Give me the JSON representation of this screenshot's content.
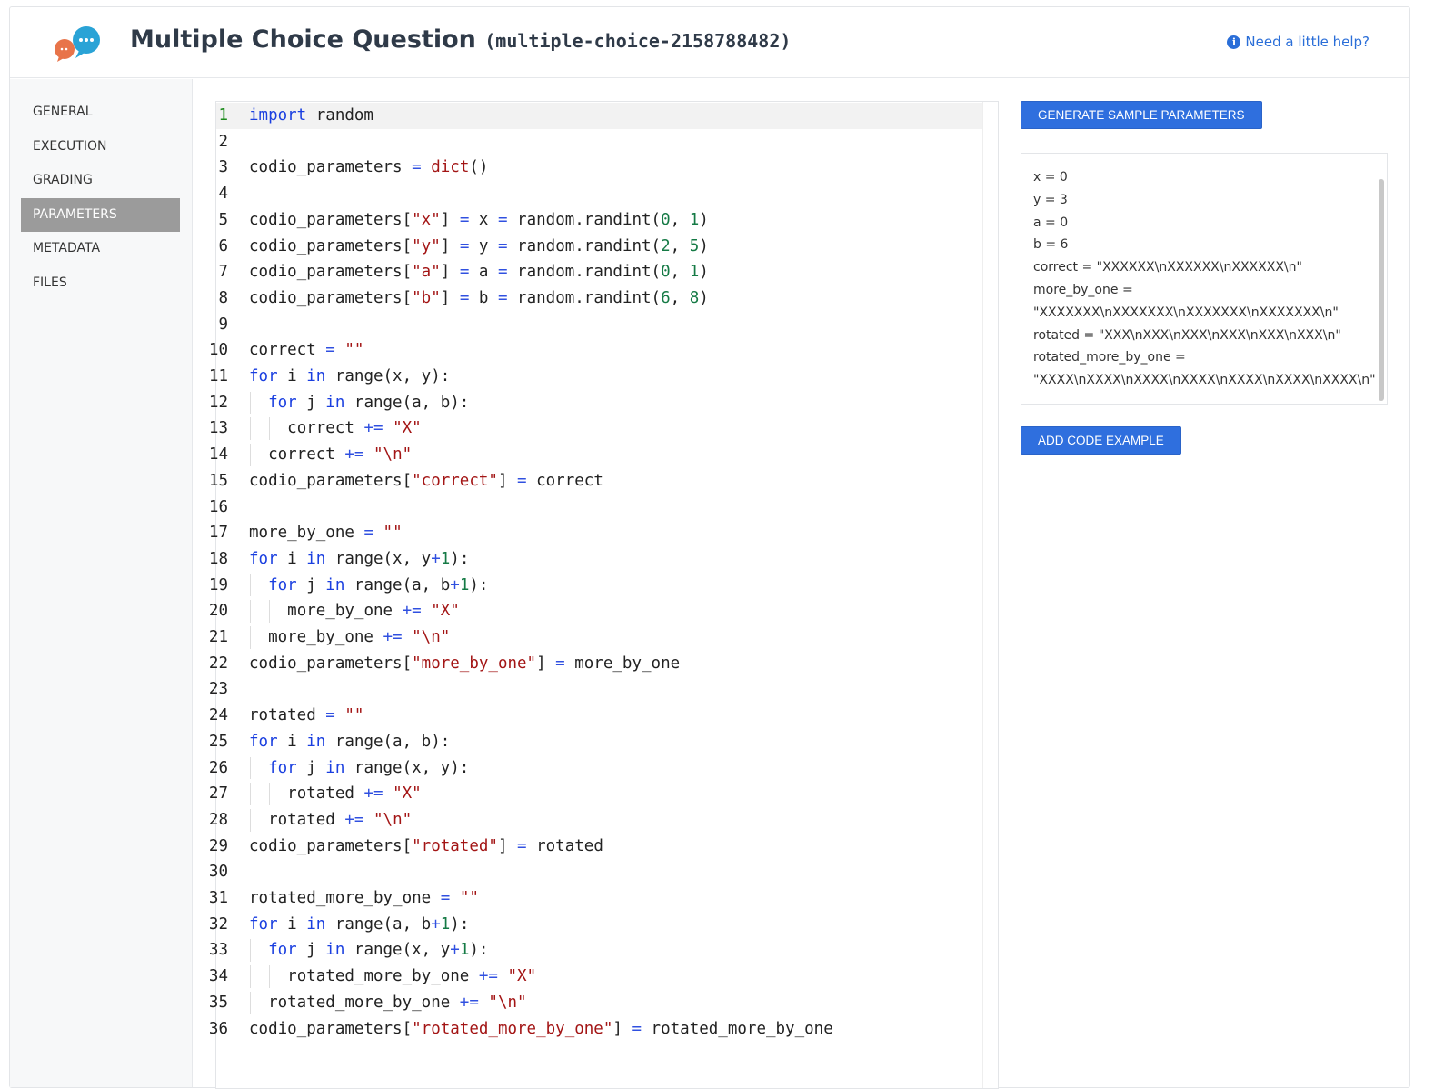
{
  "header": {
    "title": "Multiple Choice Question",
    "slug": "(multiple-choice-2158788482)",
    "help_label": "Need a little help?",
    "help_icon": "info-circle-icon",
    "logo_icon": "chat-bubbles-icon"
  },
  "sidebar": {
    "items": [
      {
        "label": "GENERAL"
      },
      {
        "label": "EXECUTION"
      },
      {
        "label": "GRADING"
      },
      {
        "label": "PARAMETERS",
        "active": true
      },
      {
        "label": "METADATA"
      },
      {
        "label": "FILES"
      }
    ]
  },
  "buttons": {
    "generate": "GENERATE SAMPLE PARAMETERS",
    "add_example": "ADD CODE EXAMPLE"
  },
  "colors": {
    "accent": "#2f6fde",
    "keyword": "#1a3fe0",
    "string": "#a31515",
    "number": "#157a45"
  },
  "params": [
    "x = 0",
    "y = 3",
    "a = 0",
    "b = 6",
    "correct = \"XXXXXX\\nXXXXXX\\nXXXXXX\\n\"",
    "more_by_one =",
    "\"XXXXXXX\\nXXXXXXX\\nXXXXXXX\\nXXXXXXX\\n\"",
    "rotated = \"XXX\\nXXX\\nXXX\\nXXX\\nXXX\\nXXX\\n\"",
    "rotated_more_by_one =",
    "\"XXXX\\nXXXX\\nXXXX\\nXXXX\\nXXXX\\nXXXX\\nXXXX\\n\""
  ],
  "code": [
    {
      "indent": 0,
      "t": [
        [
          "k",
          "import"
        ],
        [
          "p",
          " random"
        ]
      ]
    },
    {
      "indent": 0,
      "t": []
    },
    {
      "indent": 0,
      "t": [
        [
          "p",
          "codio_parameters "
        ],
        [
          "o",
          "="
        ],
        [
          "p",
          " "
        ],
        [
          "s",
          "dict"
        ],
        [
          "p",
          "()"
        ]
      ]
    },
    {
      "indent": 0,
      "t": []
    },
    {
      "indent": 0,
      "t": [
        [
          "p",
          "codio_parameters["
        ],
        [
          "s",
          "\"x\""
        ],
        [
          "p",
          "] "
        ],
        [
          "o",
          "="
        ],
        [
          "p",
          " x "
        ],
        [
          "o",
          "="
        ],
        [
          "p",
          " random.randint("
        ],
        [
          "n",
          "0"
        ],
        [
          "p",
          ", "
        ],
        [
          "n",
          "1"
        ],
        [
          "p",
          ")"
        ]
      ]
    },
    {
      "indent": 0,
      "t": [
        [
          "p",
          "codio_parameters["
        ],
        [
          "s",
          "\"y\""
        ],
        [
          "p",
          "] "
        ],
        [
          "o",
          "="
        ],
        [
          "p",
          " y "
        ],
        [
          "o",
          "="
        ],
        [
          "p",
          " random.randint("
        ],
        [
          "n",
          "2"
        ],
        [
          "p",
          ", "
        ],
        [
          "n",
          "5"
        ],
        [
          "p",
          ")"
        ]
      ]
    },
    {
      "indent": 0,
      "t": [
        [
          "p",
          "codio_parameters["
        ],
        [
          "s",
          "\"a\""
        ],
        [
          "p",
          "] "
        ],
        [
          "o",
          "="
        ],
        [
          "p",
          " a "
        ],
        [
          "o",
          "="
        ],
        [
          "p",
          " random.randint("
        ],
        [
          "n",
          "0"
        ],
        [
          "p",
          ", "
        ],
        [
          "n",
          "1"
        ],
        [
          "p",
          ")"
        ]
      ]
    },
    {
      "indent": 0,
      "t": [
        [
          "p",
          "codio_parameters["
        ],
        [
          "s",
          "\"b\""
        ],
        [
          "p",
          "] "
        ],
        [
          "o",
          "="
        ],
        [
          "p",
          " b "
        ],
        [
          "o",
          "="
        ],
        [
          "p",
          " random.randint("
        ],
        [
          "n",
          "6"
        ],
        [
          "p",
          ", "
        ],
        [
          "n",
          "8"
        ],
        [
          "p",
          ")"
        ]
      ]
    },
    {
      "indent": 0,
      "t": []
    },
    {
      "indent": 0,
      "t": [
        [
          "p",
          "correct "
        ],
        [
          "o",
          "="
        ],
        [
          "p",
          " "
        ],
        [
          "s",
          "\"\""
        ]
      ]
    },
    {
      "indent": 0,
      "t": [
        [
          "k",
          "for"
        ],
        [
          "p",
          " i "
        ],
        [
          "k",
          "in"
        ],
        [
          "p",
          " range(x, y):"
        ]
      ]
    },
    {
      "indent": 1,
      "t": [
        [
          "k",
          "for"
        ],
        [
          "p",
          " j "
        ],
        [
          "k",
          "in"
        ],
        [
          "p",
          " range(a, b):"
        ]
      ]
    },
    {
      "indent": 2,
      "t": [
        [
          "p",
          "correct "
        ],
        [
          "o",
          "+="
        ],
        [
          "p",
          " "
        ],
        [
          "s",
          "\"X\""
        ]
      ]
    },
    {
      "indent": 1,
      "t": [
        [
          "p",
          "correct "
        ],
        [
          "o",
          "+="
        ],
        [
          "p",
          " "
        ],
        [
          "s",
          "\"\\n\""
        ]
      ]
    },
    {
      "indent": 0,
      "t": [
        [
          "p",
          "codio_parameters["
        ],
        [
          "s",
          "\"correct\""
        ],
        [
          "p",
          "] "
        ],
        [
          "o",
          "="
        ],
        [
          "p",
          " correct"
        ]
      ]
    },
    {
      "indent": 0,
      "t": []
    },
    {
      "indent": 0,
      "t": [
        [
          "p",
          "more_by_one "
        ],
        [
          "o",
          "="
        ],
        [
          "p",
          " "
        ],
        [
          "s",
          "\"\""
        ]
      ]
    },
    {
      "indent": 0,
      "t": [
        [
          "k",
          "for"
        ],
        [
          "p",
          " i "
        ],
        [
          "k",
          "in"
        ],
        [
          "p",
          " range(x, y"
        ],
        [
          "o",
          "+"
        ],
        [
          "n",
          "1"
        ],
        [
          "p",
          "):"
        ]
      ]
    },
    {
      "indent": 1,
      "t": [
        [
          "k",
          "for"
        ],
        [
          "p",
          " j "
        ],
        [
          "k",
          "in"
        ],
        [
          "p",
          " range(a, b"
        ],
        [
          "o",
          "+"
        ],
        [
          "n",
          "1"
        ],
        [
          "p",
          "):"
        ]
      ]
    },
    {
      "indent": 2,
      "t": [
        [
          "p",
          "more_by_one "
        ],
        [
          "o",
          "+="
        ],
        [
          "p",
          " "
        ],
        [
          "s",
          "\"X\""
        ]
      ]
    },
    {
      "indent": 1,
      "t": [
        [
          "p",
          "more_by_one "
        ],
        [
          "o",
          "+="
        ],
        [
          "p",
          " "
        ],
        [
          "s",
          "\"\\n\""
        ]
      ]
    },
    {
      "indent": 0,
      "t": [
        [
          "p",
          "codio_parameters["
        ],
        [
          "s",
          "\"more_by_one\""
        ],
        [
          "p",
          "] "
        ],
        [
          "o",
          "="
        ],
        [
          "p",
          " more_by_one"
        ]
      ]
    },
    {
      "indent": 0,
      "t": []
    },
    {
      "indent": 0,
      "t": [
        [
          "p",
          "rotated "
        ],
        [
          "o",
          "="
        ],
        [
          "p",
          " "
        ],
        [
          "s",
          "\"\""
        ]
      ]
    },
    {
      "indent": 0,
      "t": [
        [
          "k",
          "for"
        ],
        [
          "p",
          " i "
        ],
        [
          "k",
          "in"
        ],
        [
          "p",
          " range(a, b):"
        ]
      ]
    },
    {
      "indent": 1,
      "t": [
        [
          "k",
          "for"
        ],
        [
          "p",
          " j "
        ],
        [
          "k",
          "in"
        ],
        [
          "p",
          " range(x, y):"
        ]
      ]
    },
    {
      "indent": 2,
      "t": [
        [
          "p",
          "rotated "
        ],
        [
          "o",
          "+="
        ],
        [
          "p",
          " "
        ],
        [
          "s",
          "\"X\""
        ]
      ]
    },
    {
      "indent": 1,
      "t": [
        [
          "p",
          "rotated "
        ],
        [
          "o",
          "+="
        ],
        [
          "p",
          " "
        ],
        [
          "s",
          "\"\\n\""
        ]
      ]
    },
    {
      "indent": 0,
      "t": [
        [
          "p",
          "codio_parameters["
        ],
        [
          "s",
          "\"rotated\""
        ],
        [
          "p",
          "] "
        ],
        [
          "o",
          "="
        ],
        [
          "p",
          " rotated"
        ]
      ]
    },
    {
      "indent": 0,
      "t": []
    },
    {
      "indent": 0,
      "t": [
        [
          "p",
          "rotated_more_by_one "
        ],
        [
          "o",
          "="
        ],
        [
          "p",
          " "
        ],
        [
          "s",
          "\"\""
        ]
      ]
    },
    {
      "indent": 0,
      "t": [
        [
          "k",
          "for"
        ],
        [
          "p",
          " i "
        ],
        [
          "k",
          "in"
        ],
        [
          "p",
          " range(a, b"
        ],
        [
          "o",
          "+"
        ],
        [
          "n",
          "1"
        ],
        [
          "p",
          "):"
        ]
      ]
    },
    {
      "indent": 1,
      "t": [
        [
          "k",
          "for"
        ],
        [
          "p",
          " j "
        ],
        [
          "k",
          "in"
        ],
        [
          "p",
          " range(x, y"
        ],
        [
          "o",
          "+"
        ],
        [
          "n",
          "1"
        ],
        [
          "p",
          "):"
        ]
      ]
    },
    {
      "indent": 2,
      "t": [
        [
          "p",
          "rotated_more_by_one "
        ],
        [
          "o",
          "+="
        ],
        [
          "p",
          " "
        ],
        [
          "s",
          "\"X\""
        ]
      ]
    },
    {
      "indent": 1,
      "t": [
        [
          "p",
          "rotated_more_by_one "
        ],
        [
          "o",
          "+="
        ],
        [
          "p",
          " "
        ],
        [
          "s",
          "\"\\n\""
        ]
      ]
    },
    {
      "indent": 0,
      "t": [
        [
          "p",
          "codio_parameters["
        ],
        [
          "s",
          "\"rotated_more_by_one\""
        ],
        [
          "p",
          "] "
        ],
        [
          "o",
          "="
        ],
        [
          "p",
          " rotated_more_by_one"
        ]
      ]
    }
  ]
}
